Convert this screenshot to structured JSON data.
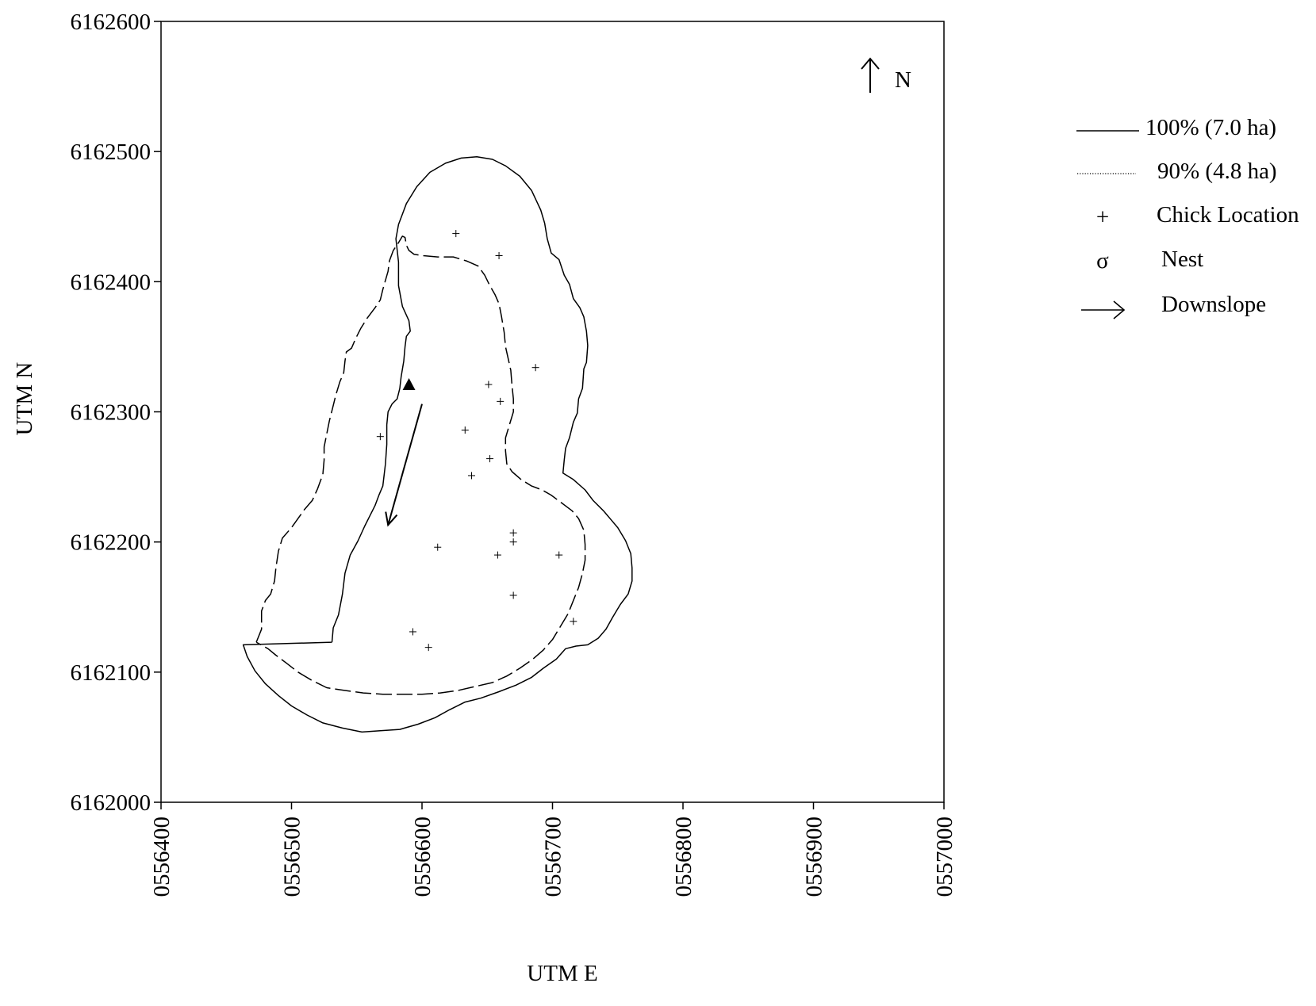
{
  "chart_data": {
    "type": "scatter",
    "title": "",
    "xlabel": "UTM E",
    "ylabel": "UTM N",
    "xlim": [
      556400,
      557000
    ],
    "ylim": [
      6162000,
      6162600
    ],
    "x_ticks": [
      {
        "value": 556400,
        "label": "0556400"
      },
      {
        "value": 556500,
        "label": "0556500"
      },
      {
        "value": 556600,
        "label": "0556600"
      },
      {
        "value": 556700,
        "label": "0556700"
      },
      {
        "value": 556800,
        "label": "0556800"
      },
      {
        "value": 556900,
        "label": "0556900"
      },
      {
        "value": 557000,
        "label": "0557000"
      }
    ],
    "y_ticks": [
      {
        "value": 6162000,
        "label": "6162000"
      },
      {
        "value": 6162100,
        "label": "6162100"
      },
      {
        "value": 6162200,
        "label": "6162200"
      },
      {
        "value": 6162300,
        "label": "6162300"
      },
      {
        "value": 6162400,
        "label": "6162400"
      },
      {
        "value": 6162500,
        "label": "6162500"
      },
      {
        "value": 6162600,
        "label": "6162600"
      }
    ],
    "north_label": "N",
    "legend": [
      {
        "key": "contour_100",
        "symbol": "solid-line",
        "label": "100% (7.0 ha)"
      },
      {
        "key": "contour_90",
        "symbol": "dotted-line",
        "label": "90% (4.8 ha)"
      },
      {
        "key": "chicks",
        "symbol": "+",
        "label": "Chick Location"
      },
      {
        "key": "nest",
        "symbol": "σ",
        "label": "Nest"
      },
      {
        "key": "downslope",
        "symbol": "arrow",
        "label": "Downslope"
      }
    ],
    "series": [
      {
        "key": "contour_100",
        "style": "solid",
        "points": [
          [
            556531,
            6162123
          ],
          [
            556532,
            6162134
          ],
          [
            556536,
            6162144
          ],
          [
            556539,
            6162160
          ],
          [
            556541,
            6162176
          ],
          [
            556545,
            6162190
          ],
          [
            556551,
            6162201
          ],
          [
            556556,
            6162212
          ],
          [
            556560,
            6162220
          ],
          [
            556564,
            6162228
          ],
          [
            556567,
            6162236
          ],
          [
            556570,
            6162243
          ],
          [
            556572,
            6162260
          ],
          [
            556573,
            6162275
          ],
          [
            556573,
            6162290
          ],
          [
            556574,
            6162300
          ],
          [
            556577,
            6162306
          ],
          [
            556581,
            6162310
          ],
          [
            556583,
            6162318
          ],
          [
            556584,
            6162327
          ],
          [
            556586,
            6162339
          ],
          [
            556587,
            6162350
          ],
          [
            556588,
            6162358
          ],
          [
            556591,
            6162362
          ],
          [
            556590,
            6162370
          ],
          [
            556585,
            6162381
          ],
          [
            556582,
            6162397
          ],
          [
            556582,
            6162415
          ],
          [
            556580,
            6162433
          ],
          [
            556582,
            6162444
          ],
          [
            556588,
            6162460
          ],
          [
            556596,
            6162473
          ],
          [
            556606,
            6162484
          ],
          [
            556618,
            6162491
          ],
          [
            556630,
            6162495
          ],
          [
            556642,
            6162496
          ],
          [
            556654,
            6162494
          ],
          [
            556664,
            6162489
          ],
          [
            556675,
            6162481
          ],
          [
            556684,
            6162470
          ],
          [
            556691,
            6162455
          ],
          [
            556694,
            6162445
          ],
          [
            556696,
            6162433
          ],
          [
            556699,
            6162422
          ],
          [
            556705,
            6162417
          ],
          [
            556709,
            6162405
          ],
          [
            556713,
            6162398
          ],
          [
            556716,
            6162387
          ],
          [
            556721,
            6162380
          ],
          [
            556724,
            6162373
          ],
          [
            556726,
            6162362
          ],
          [
            556727,
            6162351
          ],
          [
            556726,
            6162338
          ],
          [
            556724,
            6162333
          ],
          [
            556723,
            6162318
          ],
          [
            556720,
            6162310
          ],
          [
            556719,
            6162299
          ],
          [
            556716,
            6162292
          ],
          [
            556713,
            6162280
          ],
          [
            556710,
            6162272
          ],
          [
            556709,
            6162263
          ],
          [
            556708,
            6162253
          ],
          [
            556716,
            6162248
          ],
          [
            556725,
            6162240
          ],
          [
            556731,
            6162232
          ],
          [
            556739,
            6162224
          ],
          [
            556745,
            6162217
          ],
          [
            556750,
            6162211
          ],
          [
            556756,
            6162201
          ],
          [
            556760,
            6162191
          ],
          [
            556761,
            6162180
          ],
          [
            556761,
            6162170
          ],
          [
            556758,
            6162160
          ],
          [
            556752,
            6162152
          ],
          [
            556746,
            6162142
          ],
          [
            556741,
            6162133
          ],
          [
            556735,
            6162126
          ],
          [
            556727,
            6162121
          ],
          [
            556718,
            6162120
          ],
          [
            556710,
            6162118
          ],
          [
            556703,
            6162110
          ],
          [
            556693,
            6162103
          ],
          [
            556684,
            6162096
          ],
          [
            556672,
            6162090
          ],
          [
            556659,
            6162085
          ],
          [
            556645,
            6162080
          ],
          [
            556633,
            6162077
          ],
          [
            556621,
            6162071
          ],
          [
            556610,
            6162065
          ],
          [
            556597,
            6162060
          ],
          [
            556583,
            6162056
          ],
          [
            556568,
            6162055
          ],
          [
            556554,
            6162054
          ],
          [
            556539,
            6162057
          ],
          [
            556524,
            6162061
          ],
          [
            556512,
            6162067
          ],
          [
            556500,
            6162074
          ],
          [
            556490,
            6162082
          ],
          [
            556480,
            6162091
          ],
          [
            556472,
            6162101
          ],
          [
            556466,
            6162112
          ],
          [
            556463,
            6162121
          ],
          [
            556531,
            6162123
          ]
        ]
      },
      {
        "key": "contour_90",
        "style": "dashed",
        "points": [
          [
            556473,
            6162123
          ],
          [
            556477,
            6162133
          ],
          [
            556477,
            6162147
          ],
          [
            556480,
            6162155
          ],
          [
            556484,
            6162160
          ],
          [
            556487,
            6162170
          ],
          [
            556488,
            6162180
          ],
          [
            556490,
            6162193
          ],
          [
            556493,
            6162203
          ],
          [
            556500,
            6162211
          ],
          [
            556505,
            6162218
          ],
          [
            556510,
            6162225
          ],
          [
            556516,
            6162232
          ],
          [
            556520,
            6162241
          ],
          [
            556524,
            6162252
          ],
          [
            556525,
            6162263
          ],
          [
            556525,
            6162273
          ],
          [
            556527,
            6162283
          ],
          [
            556529,
            6162293
          ],
          [
            556531,
            6162301
          ],
          [
            556534,
            6162313
          ],
          [
            556537,
            6162323
          ],
          [
            556540,
            6162330
          ],
          [
            556541,
            6162339
          ],
          [
            556542,
            6162346
          ],
          [
            556546,
            6162349
          ],
          [
            556549,
            6162356
          ],
          [
            556553,
            6162364
          ],
          [
            556558,
            6162372
          ],
          [
            556564,
            6162380
          ],
          [
            556568,
            6162386
          ],
          [
            556570,
            6162394
          ],
          [
            556572,
            6162401
          ],
          [
            556574,
            6162408
          ],
          [
            556575,
            6162416
          ],
          [
            556578,
            6162424
          ],
          [
            556582,
            6162430
          ],
          [
            556585,
            6162435
          ],
          [
            556587,
            6162434
          ],
          [
            556588,
            6162428
          ],
          [
            556590,
            6162424
          ],
          [
            556594,
            6162421
          ],
          [
            556601,
            6162420
          ],
          [
            556612,
            6162419
          ],
          [
            556624,
            6162419
          ],
          [
            556634,
            6162416
          ],
          [
            556643,
            6162412
          ],
          [
            556648,
            6162405
          ],
          [
            556652,
            6162397
          ],
          [
            556656,
            6162390
          ],
          [
            556659,
            6162383
          ],
          [
            556661,
            6162373
          ],
          [
            556663,
            6162361
          ],
          [
            556664,
            6162350
          ],
          [
            556666,
            6162341
          ],
          [
            556668,
            6162332
          ],
          [
            556669,
            6162320
          ],
          [
            556670,
            6162310
          ],
          [
            556670,
            6162300
          ],
          [
            556667,
            6162290
          ],
          [
            556664,
            6162280
          ],
          [
            556664,
            6162270
          ],
          [
            556665,
            6162260
          ],
          [
            556669,
            6162254
          ],
          [
            556676,
            6162248
          ],
          [
            556684,
            6162243
          ],
          [
            556692,
            6162240
          ],
          [
            556699,
            6162236
          ],
          [
            556707,
            6162230
          ],
          [
            556715,
            6162224
          ],
          [
            556720,
            6162218
          ],
          [
            556724,
            6162209
          ],
          [
            556725,
            6162198
          ],
          [
            556725,
            6162186
          ],
          [
            556723,
            6162176
          ],
          [
            556720,
            6162165
          ],
          [
            556716,
            6162155
          ],
          [
            556712,
            6162145
          ],
          [
            556706,
            6162135
          ],
          [
            556700,
            6162125
          ],
          [
            556693,
            6162117
          ],
          [
            556685,
            6162110
          ],
          [
            556675,
            6162103
          ],
          [
            556665,
            6162097
          ],
          [
            556654,
            6162092
          ],
          [
            556641,
            6162089
          ],
          [
            556628,
            6162086
          ],
          [
            556614,
            6162084
          ],
          [
            556600,
            6162083
          ],
          [
            556585,
            6162083
          ],
          [
            556570,
            6162083
          ],
          [
            556555,
            6162084
          ],
          [
            556540,
            6162086
          ],
          [
            556527,
            6162088
          ],
          [
            556515,
            6162094
          ],
          [
            556505,
            6162100
          ],
          [
            556496,
            6162107
          ],
          [
            556488,
            6162113
          ],
          [
            556482,
            6162118
          ],
          [
            556473,
            6162123
          ]
        ]
      }
    ],
    "chicks": [
      [
        556626,
        6162437
      ],
      [
        556659,
        6162420
      ],
      [
        556651,
        6162321
      ],
      [
        556660,
        6162308
      ],
      [
        556633,
        6162286
      ],
      [
        556652,
        6162264
      ],
      [
        556638,
        6162251
      ],
      [
        556687,
        6162334
      ],
      [
        556568,
        6162281
      ],
      [
        556612,
        6162196
      ],
      [
        556658,
        6162190
      ],
      [
        556670,
        6162207
      ],
      [
        556670,
        6162200
      ],
      [
        556705,
        6162190
      ],
      [
        556670,
        6162159
      ],
      [
        556716,
        6162139
      ],
      [
        556593,
        6162131
      ],
      [
        556605,
        6162119
      ]
    ],
    "nest": [
      556590,
      6162321
    ],
    "downslope_arrow": {
      "from": [
        556600,
        6162306
      ],
      "to": [
        556574,
        6162213
      ]
    }
  }
}
